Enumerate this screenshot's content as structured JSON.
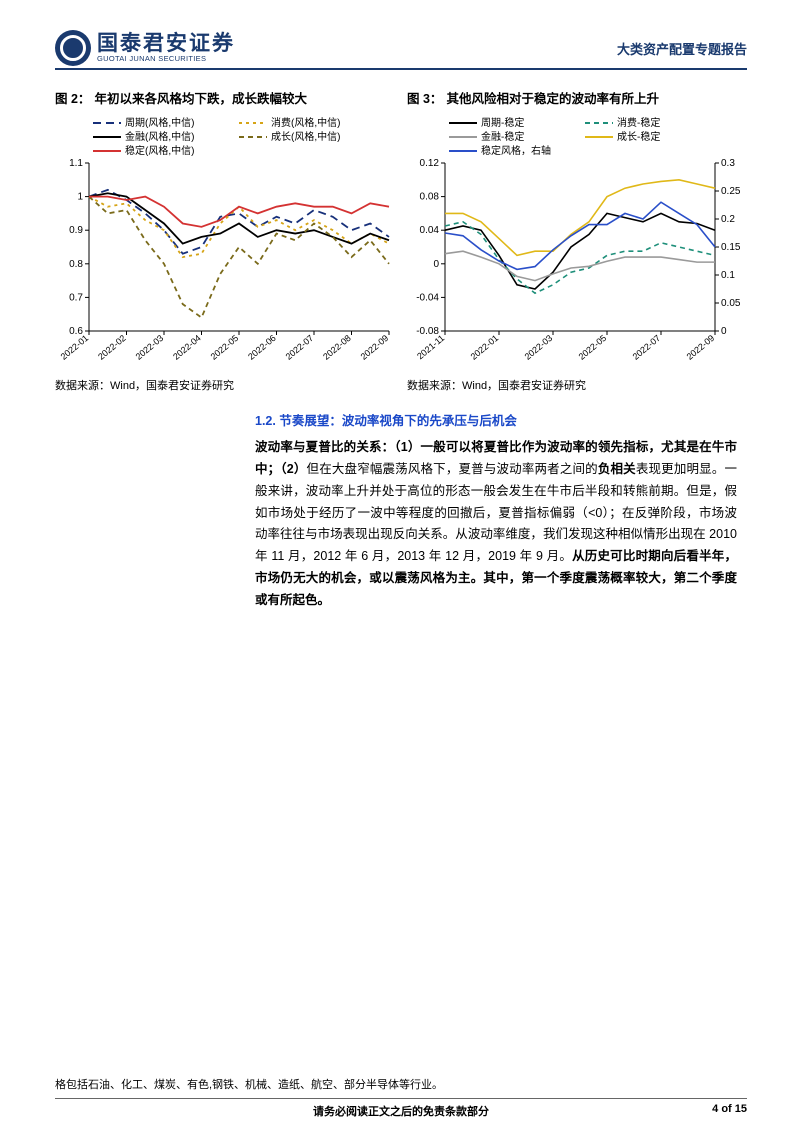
{
  "header": {
    "logo_cn": "国泰君安证券",
    "logo_en": "GUOTAI JUNAN SECURITIES",
    "right": "大类资产配置专题报告"
  },
  "chart2": {
    "title_prefix": "图 2：",
    "title": "年初以来各风格均下跌，成长跌幅较大",
    "type": "line",
    "legend": [
      {
        "label": "周期(风格,中信)",
        "color": "#17307a",
        "dash": "8,5"
      },
      {
        "label": "消费(风格,中信)",
        "color": "#d6a416",
        "dash": "3,4"
      },
      {
        "label": "金融(风格,中信)",
        "color": "#000000",
        "dash": "none"
      },
      {
        "label": "成长(风格,中信)",
        "color": "#7a6a1a",
        "dash": "5,4"
      },
      {
        "label": "稳定(风格,中信)",
        "color": "#d43232",
        "dash": "none"
      }
    ],
    "x_labels": [
      "2022-01",
      "2022-02",
      "2022-03",
      "2022-04",
      "2022-05",
      "2022-06",
      "2022-07",
      "2022-08",
      "2022-09"
    ],
    "y_ticks": [
      0.6,
      0.7,
      0.8,
      0.9,
      1,
      1.1
    ],
    "ylim": [
      0.6,
      1.1
    ],
    "series": {
      "cycle": [
        1.0,
        1.02,
        0.99,
        0.95,
        0.9,
        0.83,
        0.85,
        0.94,
        0.95,
        0.91,
        0.94,
        0.92,
        0.96,
        0.94,
        0.9,
        0.92,
        0.88
      ],
      "consume": [
        1.0,
        0.97,
        0.98,
        0.93,
        0.9,
        0.82,
        0.83,
        0.92,
        0.97,
        0.91,
        0.93,
        0.9,
        0.93,
        0.9,
        0.86,
        0.89,
        0.86
      ],
      "finance": [
        1.0,
        1.01,
        1.0,
        0.96,
        0.92,
        0.86,
        0.88,
        0.89,
        0.92,
        0.88,
        0.9,
        0.89,
        0.9,
        0.88,
        0.86,
        0.89,
        0.87
      ],
      "growth": [
        1.0,
        0.95,
        0.96,
        0.87,
        0.8,
        0.68,
        0.64,
        0.77,
        0.85,
        0.8,
        0.89,
        0.87,
        0.92,
        0.88,
        0.82,
        0.87,
        0.8
      ],
      "stable": [
        1.0,
        1.0,
        0.99,
        1.0,
        0.97,
        0.92,
        0.91,
        0.93,
        0.97,
        0.95,
        0.97,
        0.98,
        0.97,
        0.97,
        0.95,
        0.98,
        0.97
      ]
    },
    "source": "数据来源：Wind，国泰君安证券研究"
  },
  "chart3": {
    "title_prefix": "图 3：",
    "title": "其他风险相对于稳定的波动率有所上升",
    "type": "line-dual-axis",
    "legend": [
      {
        "label": "周期-稳定",
        "color": "#000000",
        "dash": "none"
      },
      {
        "label": "消费-稳定",
        "color": "#1e8f7a",
        "dash": "5,4"
      },
      {
        "label": "金融-稳定",
        "color": "#9a9a9a",
        "dash": "none"
      },
      {
        "label": "成长-稳定",
        "color": "#e0b818",
        "dash": "none"
      },
      {
        "label": "稳定风格，右轴",
        "color": "#2a4fc9",
        "dash": "none"
      }
    ],
    "x_labels": [
      "2021-11",
      "2022-01",
      "2022-03",
      "2022-05",
      "2022-07",
      "2022-09"
    ],
    "y_left_ticks": [
      -0.08,
      -0.04,
      0,
      0.04,
      0.08,
      0.12
    ],
    "y_right_ticks": [
      0,
      0.05,
      0.1,
      0.15,
      0.2,
      0.25,
      0.3
    ],
    "ylim_left": [
      -0.08,
      0.12
    ],
    "ylim_right": [
      0,
      0.3
    ],
    "series_left": {
      "cycle": [
        0.04,
        0.045,
        0.04,
        0.01,
        -0.025,
        -0.03,
        -0.01,
        0.02,
        0.035,
        0.06,
        0.055,
        0.05,
        0.06,
        0.05,
        0.048,
        0.04
      ],
      "consume": [
        0.045,
        0.05,
        0.035,
        0.005,
        -0.018,
        -0.035,
        -0.025,
        -0.01,
        -0.005,
        0.01,
        0.015,
        0.015,
        0.025,
        0.02,
        0.015,
        0.01
      ],
      "finance": [
        0.012,
        0.015,
        0.008,
        0.0,
        -0.015,
        -0.02,
        -0.012,
        -0.005,
        -0.003,
        0.003,
        0.008,
        0.008,
        0.008,
        0.005,
        0.002,
        0.002
      ],
      "growth": [
        0.06,
        0.06,
        0.05,
        0.03,
        0.01,
        0.015,
        0.015,
        0.035,
        0.05,
        0.08,
        0.09,
        0.095,
        0.098,
        0.1,
        0.095,
        0.09
      ]
    },
    "series_right": {
      "stable": [
        0.175,
        0.17,
        0.145,
        0.125,
        0.11,
        0.115,
        0.145,
        0.17,
        0.19,
        0.19,
        0.21,
        0.2,
        0.23,
        0.21,
        0.19,
        0.15
      ]
    },
    "source": "数据来源：Wind，国泰君安证券研究"
  },
  "section": {
    "number": "1.2.",
    "heading": "节奏展望：波动率视角下的先承压与后机会",
    "bold_a": "波动率与夏普比的关系：（1）一般可以将夏普比作为波动率的领先指标，尤其是在牛市中；（2）",
    "text_a": "但在大盘窄幅震荡风格下，夏普与波动率两者之间的",
    "bold_b": "负相关",
    "text_b": "表现更加明显。一般来讲，波动率上升并处于高位的形态一般会发生在牛市后半段和转熊前期。但是，假如市场处于经历了一波中等程度的回撤后，夏普指标偏弱（<0）；在反弹阶段，市场波动率往往与市场表现出现反向关系。从波动率维度，我们发现这种相似情形出现在 2010 年 11 月，2012 年 6 月，2013 年 12 月，2019 年 9 月。",
    "bold_c": "从历史可比时期向后看半年，市场仍无大的机会，或以震荡风格为主。其中，第一个季度震荡概率较大，第二个季度或有所起色。"
  },
  "footer": {
    "note": "格包括石油、化工、煤炭、有色,钢铁、机械、造纸、航空、部分半导体等行业。",
    "center": "请务必阅读正文之后的免责条款部分",
    "pagenum": "4 of 15"
  }
}
